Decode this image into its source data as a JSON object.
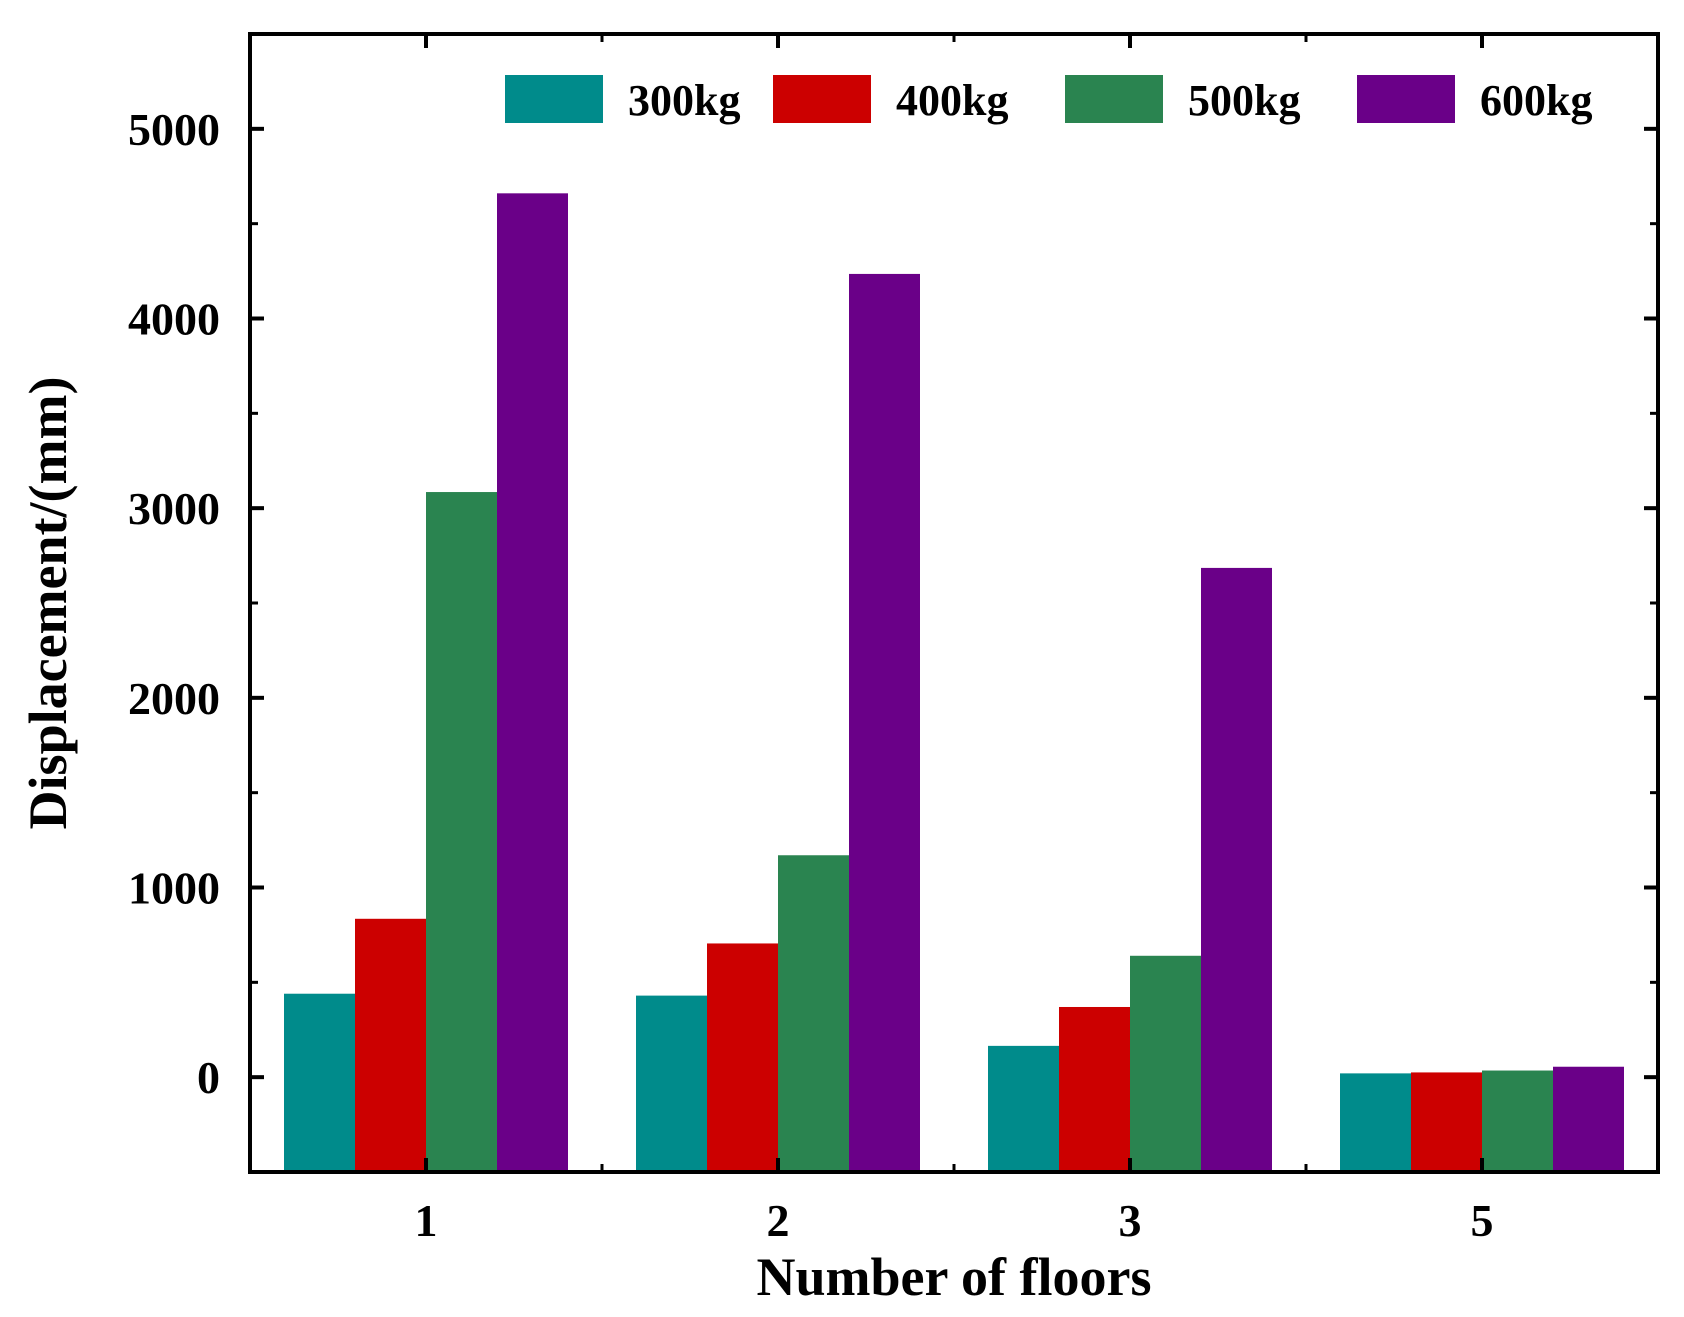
{
  "chart_data": {
    "type": "bar",
    "xlabel": "Number of floors",
    "ylabel": "Displacement/(mm)",
    "categories": [
      "1",
      "2",
      "3",
      "5"
    ],
    "ylim": [
      -500,
      5500
    ],
    "yticks": [
      0,
      1000,
      2000,
      3000,
      4000,
      5000
    ],
    "ytick_labels": [
      "0",
      "1000",
      "2000",
      "3000",
      "4000",
      "5000"
    ],
    "grid": false,
    "legend_position": "top-right",
    "series": [
      {
        "name": "300kg",
        "color": "#008b8b",
        "values": [
          440,
          430,
          165,
          20
        ]
      },
      {
        "name": "400kg",
        "color": "#cc0000",
        "values": [
          835,
          705,
          370,
          25
        ]
      },
      {
        "name": "500kg",
        "color": "#2a8450",
        "values": [
          3085,
          1170,
          640,
          35
        ]
      },
      {
        "name": "600kg",
        "color": "#6a0088",
        "values": [
          4660,
          4235,
          2685,
          55
        ]
      }
    ]
  }
}
